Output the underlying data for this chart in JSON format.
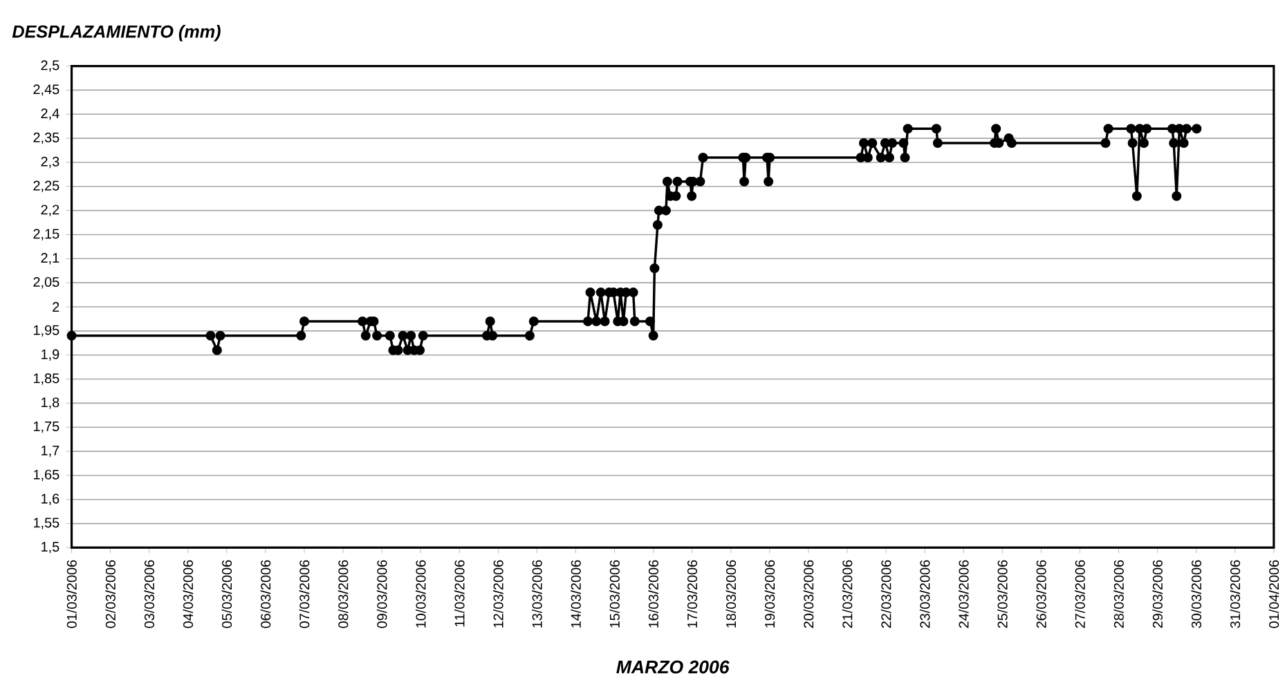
{
  "chart_data": {
    "type": "line",
    "ylabel": "DESPLAZAMIENTO (mm)",
    "xlabel": "MARZO 2006",
    "x": [
      "2006-03-01T00:00",
      "2006-03-04T14:00",
      "2006-03-04T18:00",
      "2006-03-04T20:00",
      "2006-03-06T22:00",
      "2006-03-07T00:00",
      "2006-03-08T12:00",
      "2006-03-08T14:00",
      "2006-03-08T17:00",
      "2006-03-08T19:00",
      "2006-03-08T21:00",
      "2006-03-09T05:00",
      "2006-03-09T07:00",
      "2006-03-09T10:00",
      "2006-03-09T13:00",
      "2006-03-09T16:00",
      "2006-03-09T18:00",
      "2006-03-09T20:00",
      "2006-03-09T23:30",
      "2006-03-10T01:30",
      "2006-03-11T17:00",
      "2006-03-11T19:00",
      "2006-03-11T20:30",
      "2006-03-12T19:30",
      "2006-03-12T22:00",
      "2006-03-14T07:30",
      "2006-03-14T09:00",
      "2006-03-14T12:45",
      "2006-03-14T15:30",
      "2006-03-14T18:00",
      "2006-03-14T20:40",
      "2006-03-14T23:20",
      "2006-03-15T02:00",
      "2006-03-15T03:40",
      "2006-03-15T05:30",
      "2006-03-15T07:10",
      "2006-03-15T11:35",
      "2006-03-15T12:30",
      "2006-03-15T22:00",
      "2006-03-16T00:00",
      "2006-03-16T00:45",
      "2006-03-16T02:40",
      "2006-03-16T03:30",
      "2006-03-16T07:50",
      "2006-03-16T08:40",
      "2006-03-16T10:30",
      "2006-03-16T14:00",
      "2006-03-16T14:55",
      "2006-03-16T22:50",
      "2006-03-16T23:45",
      "2006-03-17T00:30",
      "2006-03-17T05:00",
      "2006-03-17T06:45",
      "2006-03-18T07:30",
      "2006-03-18T08:15",
      "2006-03-18T09:10",
      "2006-03-18T22:20",
      "2006-03-18T23:15",
      "2006-03-19T00:05",
      "2006-03-21T08:25",
      "2006-03-21T10:15",
      "2006-03-21T12:45",
      "2006-03-21T15:30",
      "2006-03-21T20:50",
      "2006-03-21T23:30",
      "2006-03-22T02:05",
      "2006-03-22T03:50",
      "2006-03-22T10:50",
      "2006-03-22T11:45",
      "2006-03-22T13:30",
      "2006-03-23T07:10",
      "2006-03-23T08:00",
      "2006-03-24T19:10",
      "2006-03-24T20:05",
      "2006-03-24T21:50",
      "2006-03-25T04:00",
      "2006-03-25T05:45",
      "2006-03-27T15:50",
      "2006-03-27T17:35",
      "2006-03-28T07:40",
      "2006-03-28T08:35",
      "2006-03-28T11:15",
      "2006-03-28T13:00",
      "2006-03-28T15:35",
      "2006-03-28T17:20",
      "2006-03-29T09:10",
      "2006-03-29T10:05",
      "2006-03-29T11:50",
      "2006-03-29T13:35",
      "2006-03-29T16:15",
      "2006-03-29T18:00",
      "2006-03-30T00:15"
    ],
    "series": [
      {
        "color": "#000000",
        "values": [
          1.94,
          1.94,
          1.91,
          1.94,
          1.94,
          1.97,
          1.97,
          1.94,
          1.97,
          1.97,
          1.94,
          1.94,
          1.91,
          1.91,
          1.94,
          1.91,
          1.94,
          1.91,
          1.91,
          1.94,
          1.94,
          1.97,
          1.94,
          1.94,
          1.97,
          1.97,
          2.03,
          1.97,
          2.03,
          1.97,
          2.03,
          2.03,
          1.97,
          2.03,
          1.97,
          2.03,
          2.03,
          1.97,
          1.97,
          1.94,
          2.08,
          2.17,
          2.2,
          2.2,
          2.26,
          2.23,
          2.23,
          2.26,
          2.26,
          2.23,
          2.26,
          2.26,
          2.31,
          2.31,
          2.26,
          2.31,
          2.31,
          2.26,
          2.31,
          2.31,
          2.34,
          2.31,
          2.34,
          2.31,
          2.34,
          2.31,
          2.34,
          2.34,
          2.31,
          2.37,
          2.37,
          2.34,
          2.34,
          2.37,
          2.34,
          2.35,
          2.34,
          2.34,
          2.37,
          2.37,
          2.34,
          2.23,
          2.37,
          2.34,
          2.37,
          2.37,
          2.34,
          2.23,
          2.37,
          2.34,
          2.37,
          2.37
        ]
      }
    ],
    "marker": "circle",
    "line_style": "solid",
    "grid": "y",
    "xlim": [
      "2006-03-01",
      "2006-04-01"
    ],
    "xticks": [
      {
        "value": "2006-03-01",
        "label": "01/03/2006"
      },
      {
        "value": "2006-03-02",
        "label": "02/03/2006"
      },
      {
        "value": "2006-03-03",
        "label": "03/03/2006"
      },
      {
        "value": "2006-03-04",
        "label": "04/03/2006"
      },
      {
        "value": "2006-03-05",
        "label": "05/03/2006"
      },
      {
        "value": "2006-03-06",
        "label": "06/03/2006"
      },
      {
        "value": "2006-03-07",
        "label": "07/03/2006"
      },
      {
        "value": "2006-03-08",
        "label": "08/03/2006"
      },
      {
        "value": "2006-03-09",
        "label": "09/03/2006"
      },
      {
        "value": "2006-03-10",
        "label": "10/03/2006"
      },
      {
        "value": "2006-03-11",
        "label": "11/03/2006"
      },
      {
        "value": "2006-03-12",
        "label": "12/03/2006"
      },
      {
        "value": "2006-03-13",
        "label": "13/03/2006"
      },
      {
        "value": "2006-03-14",
        "label": "14/03/2006"
      },
      {
        "value": "2006-03-15",
        "label": "15/03/2006"
      },
      {
        "value": "2006-03-16",
        "label": "16/03/2006"
      },
      {
        "value": "2006-03-17",
        "label": "17/03/2006"
      },
      {
        "value": "2006-03-18",
        "label": "18/03/2006"
      },
      {
        "value": "2006-03-19",
        "label": "19/03/2006"
      },
      {
        "value": "2006-03-20",
        "label": "20/03/2006"
      },
      {
        "value": "2006-03-21",
        "label": "21/03/2006"
      },
      {
        "value": "2006-03-22",
        "label": "22/03/2006"
      },
      {
        "value": "2006-03-23",
        "label": "23/03/2006"
      },
      {
        "value": "2006-03-24",
        "label": "24/03/2006"
      },
      {
        "value": "2006-03-25",
        "label": "25/03/2006"
      },
      {
        "value": "2006-03-26",
        "label": "26/03/2006"
      },
      {
        "value": "2006-03-27",
        "label": "27/03/2006"
      },
      {
        "value": "2006-03-28",
        "label": "28/03/2006"
      },
      {
        "value": "2006-03-29",
        "label": "29/03/2006"
      },
      {
        "value": "2006-03-30",
        "label": "30/03/2006"
      },
      {
        "value": "2006-03-31",
        "label": "31/03/2006"
      },
      {
        "value": "2006-04-01",
        "label": "01/04/2006"
      }
    ],
    "ylim": [
      1.5,
      2.5
    ],
    "yticks": [
      {
        "value": 1.5,
        "label": "1,5"
      },
      {
        "value": 1.55,
        "label": "1,55"
      },
      {
        "value": 1.6,
        "label": "1,6"
      },
      {
        "value": 1.65,
        "label": "1,65"
      },
      {
        "value": 1.7,
        "label": "1,7"
      },
      {
        "value": 1.75,
        "label": "1,75"
      },
      {
        "value": 1.8,
        "label": "1,8"
      },
      {
        "value": 1.85,
        "label": "1,85"
      },
      {
        "value": 1.9,
        "label": "1,9"
      },
      {
        "value": 1.95,
        "label": "1,95"
      },
      {
        "value": 2,
        "label": "2"
      },
      {
        "value": 2.05,
        "label": "2,05"
      },
      {
        "value": 2.1,
        "label": "2,1"
      },
      {
        "value": 2.15,
        "label": "2,15"
      },
      {
        "value": 2.2,
        "label": "2,2"
      },
      {
        "value": 2.25,
        "label": "2,25"
      },
      {
        "value": 2.3,
        "label": "2,3"
      },
      {
        "value": 2.35,
        "label": "2,35"
      },
      {
        "value": 2.4,
        "label": "2,4"
      },
      {
        "value": 2.45,
        "label": "2,45"
      },
      {
        "value": 2.5,
        "label": "2,5"
      }
    ]
  }
}
